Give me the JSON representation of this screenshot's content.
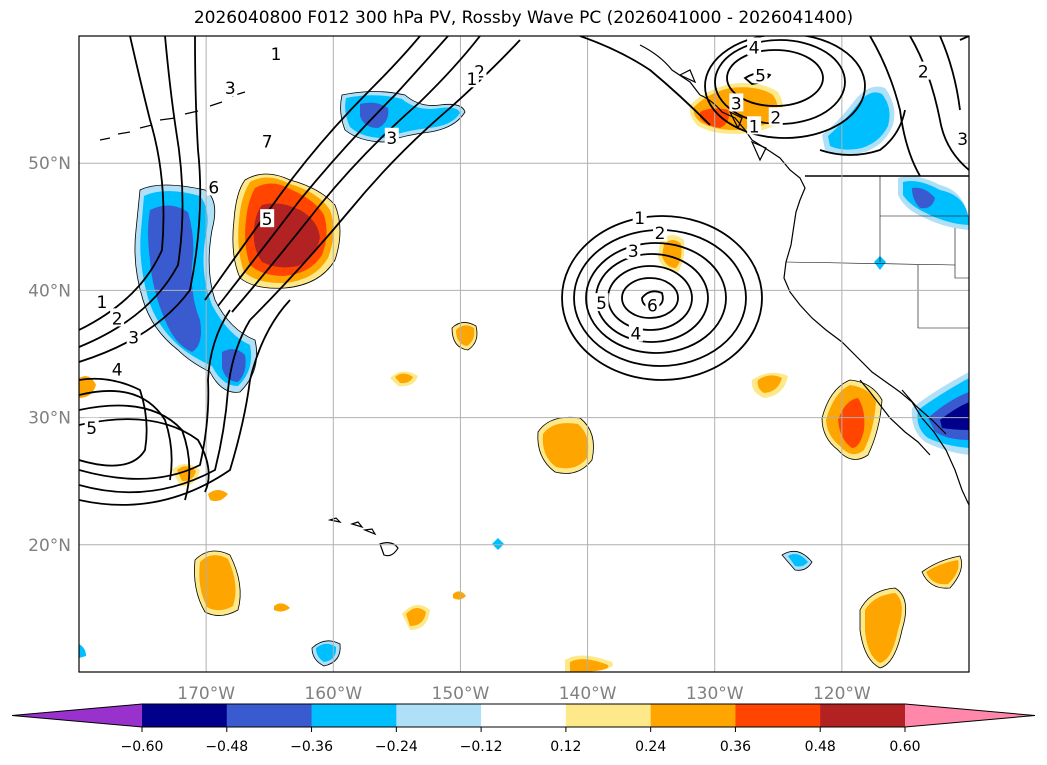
{
  "title": "2026040800 F012 300 hPa PV, Rossby Wave PC (2026041000 - 2026041400)",
  "map": {
    "extent": {
      "lon_min": -180,
      "lon_max": -110,
      "lat_min": 10,
      "lat_max": 60
    },
    "lat_labels": [
      {
        "lat": 50,
        "text": "50°N"
      },
      {
        "lat": 40,
        "text": "40°N"
      },
      {
        "lat": 30,
        "text": "30°N"
      },
      {
        "lat": 20,
        "text": "20°N"
      }
    ],
    "lon_labels": [
      {
        "lon": -170,
        "text": "170°W"
      },
      {
        "lon": -160,
        "text": "160°W"
      },
      {
        "lon": -150,
        "text": "150°W"
      },
      {
        "lon": -140,
        "text": "140°W"
      },
      {
        "lon": -130,
        "text": "130°W"
      },
      {
        "lon": -120,
        "text": "120°W"
      }
    ],
    "contour_labels": [
      {
        "text": "1",
        "lon": -164.5,
        "lat": 58.6
      },
      {
        "text": "2",
        "lon": -148.5,
        "lat": 57.2
      },
      {
        "text": "1",
        "lon": -149.1,
        "lat": 56.6
      },
      {
        "text": "3",
        "lon": -168.1,
        "lat": 55.9
      },
      {
        "text": "7",
        "lon": -165.2,
        "lat": 51.7
      },
      {
        "text": "3",
        "lon": -155.4,
        "lat": 52.0
      },
      {
        "text": "6",
        "lon": -169.4,
        "lat": 48.1
      },
      {
        "text": "5",
        "lon": -165.2,
        "lat": 45.6
      },
      {
        "text": "1",
        "lon": -178.2,
        "lat": 39.1
      },
      {
        "text": "2",
        "lon": -177.0,
        "lat": 37.8
      },
      {
        "text": "3",
        "lon": -175.7,
        "lat": 36.3
      },
      {
        "text": "4",
        "lon": -177.0,
        "lat": 33.8
      },
      {
        "text": "5",
        "lon": -179.0,
        "lat": 29.2
      },
      {
        "text": "1",
        "lon": -135.9,
        "lat": 45.7
      },
      {
        "text": "2",
        "lon": -134.3,
        "lat": 44.5
      },
      {
        "text": "3",
        "lon": -136.4,
        "lat": 43.1
      },
      {
        "text": "5",
        "lon": -138.9,
        "lat": 39.0
      },
      {
        "text": "6",
        "lon": -134.9,
        "lat": 38.8
      },
      {
        "text": "4",
        "lon": -136.2,
        "lat": 36.6
      },
      {
        "text": "4",
        "lon": -126.9,
        "lat": 59.1
      },
      {
        "text": "5",
        "lon": -126.4,
        "lat": 56.9
      },
      {
        "text": "3",
        "lon": -128.3,
        "lat": 54.7
      },
      {
        "text": "2",
        "lon": -125.2,
        "lat": 53.6
      },
      {
        "text": "1",
        "lon": -126.9,
        "lat": 52.9
      },
      {
        "text": "2",
        "lon": -113.6,
        "lat": 57.2
      },
      {
        "text": "3",
        "lon": -110.5,
        "lat": 51.9
      }
    ]
  },
  "colorbar": {
    "ticks": [
      "−0.60",
      "−0.48",
      "−0.36",
      "−0.24",
      "−0.12",
      "0.12",
      "0.24",
      "0.36",
      "0.48",
      "0.60"
    ],
    "colors": {
      "under": "#9932cc",
      "bins": [
        "#00008b",
        "#3a5bd0",
        "#00bfff",
        "#b0e0f8",
        "#ffffff",
        "#fde98a",
        "#ffa500",
        "#ff4500",
        "#b22222"
      ],
      "over": "#ff88aa"
    }
  },
  "colors": {
    "neg_light": "#b0e0f8",
    "neg_mid": "#00bfff",
    "neg_strong": "#3a5bd0",
    "neg_max": "#00008b",
    "pos_light": "#fde98a",
    "pos_mid": "#ffa500",
    "pos_strong": "#ff4500",
    "pos_max": "#b22222",
    "grid": "#b0b0b0",
    "contour": "#000000"
  }
}
